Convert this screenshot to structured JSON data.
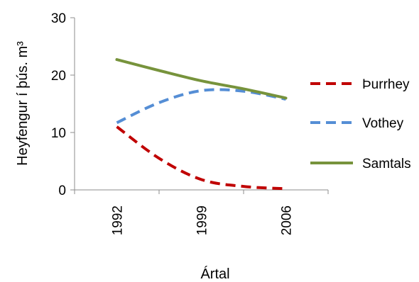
{
  "chart_data": {
    "type": "line",
    "title": "",
    "xlabel": "Ártal",
    "ylabel": "Heyfengur í þús. m³",
    "categories": [
      "1992",
      "1999",
      "2006"
    ],
    "x": [
      1992,
      1995.5,
      1999,
      2002.5,
      2006
    ],
    "ylim": [
      0,
      30
    ],
    "yticks": [
      0,
      10,
      20,
      30
    ],
    "grid": false,
    "legend": "right",
    "series": [
      {
        "name": "Þurrhey",
        "color": "#c00000",
        "style": "dashed",
        "values": [
          11.0,
          5.5,
          1.8,
          0.6,
          0.2
        ]
      },
      {
        "name": "Vothey",
        "color": "#558ed5",
        "style": "dashed",
        "values": [
          11.7,
          15.2,
          17.3,
          17.2,
          15.8
        ]
      },
      {
        "name": "Samtals",
        "color": "#77933c",
        "style": "solid",
        "values": [
          22.7,
          20.8,
          19.0,
          17.6,
          16.0
        ]
      }
    ]
  }
}
